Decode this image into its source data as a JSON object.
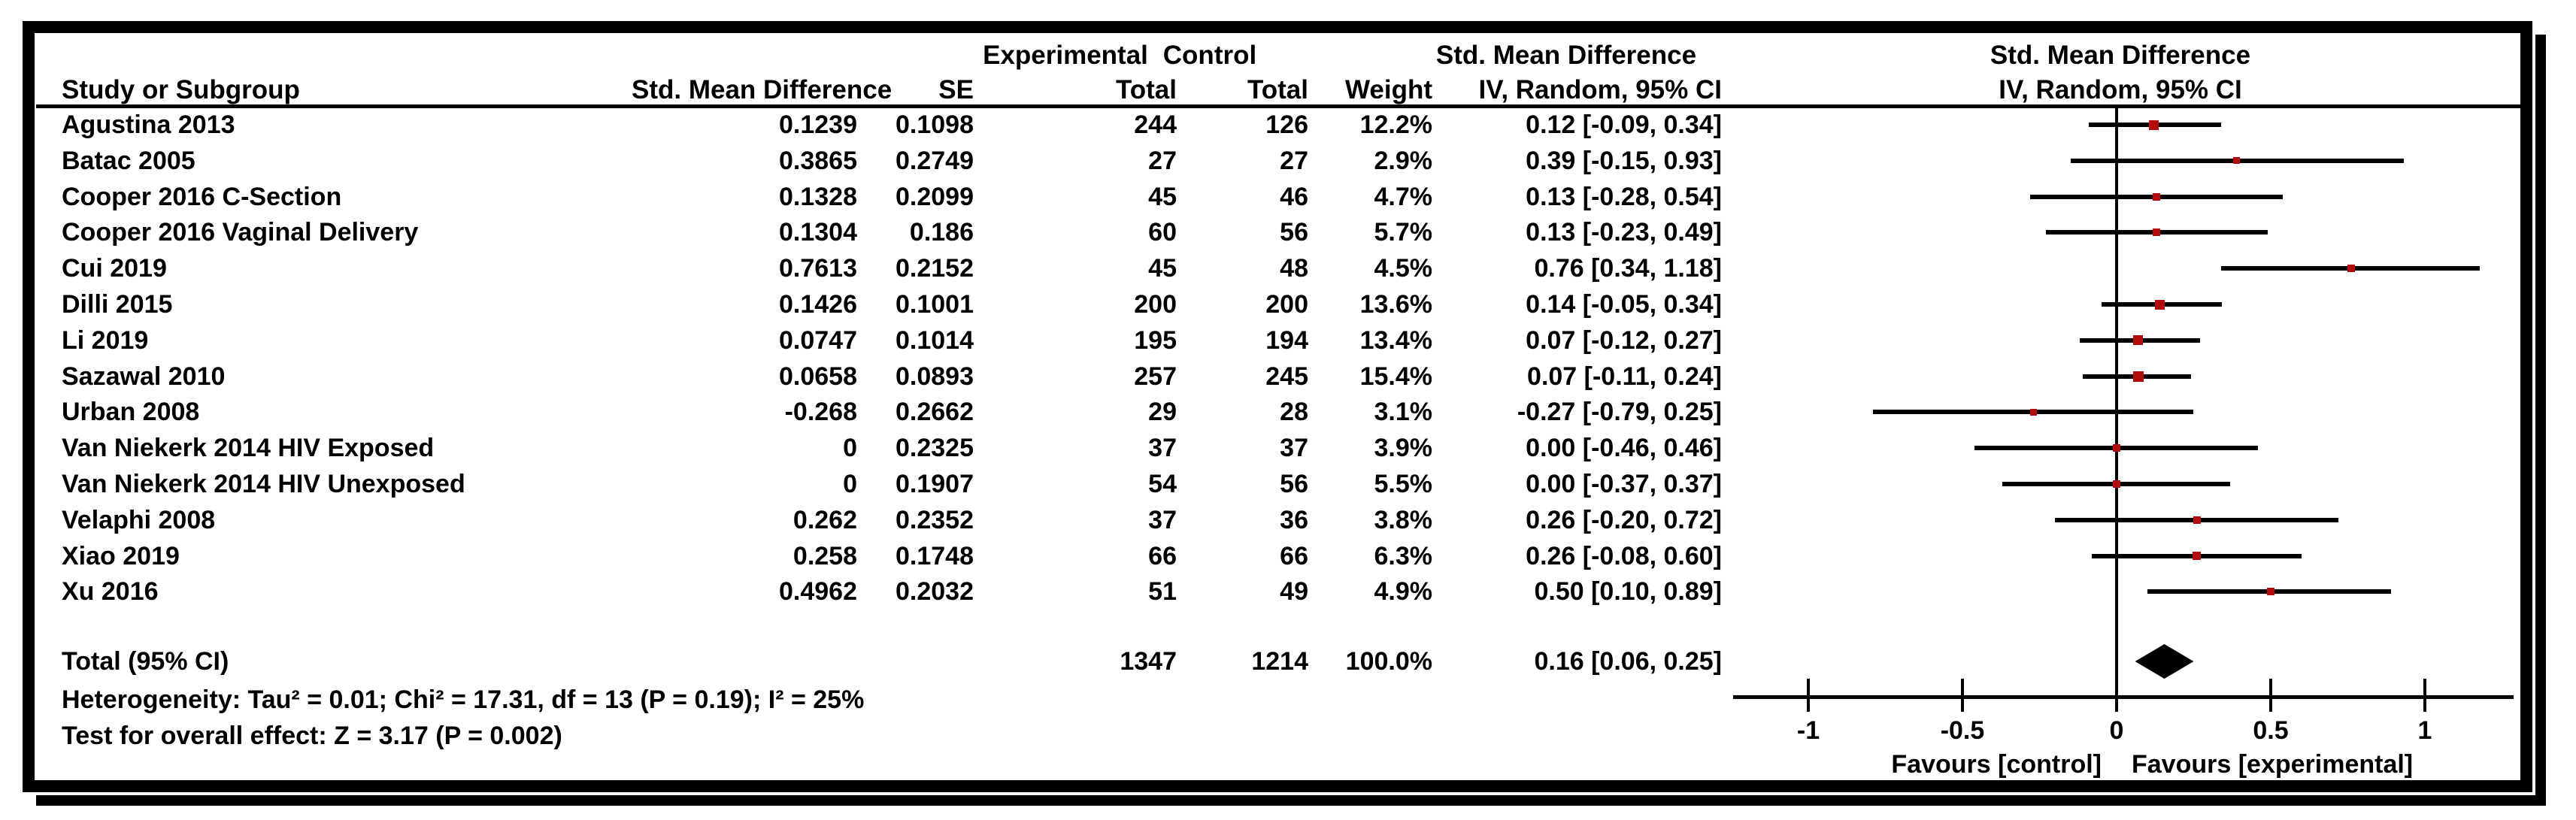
{
  "table": {
    "group_header": {
      "experimental": "Experimental",
      "control": "Control",
      "smd": "Std. Mean Difference",
      "plot_smd": "Std. Mean Difference"
    },
    "columns": {
      "study": "Study or Subgroup",
      "smd": "Std. Mean Difference",
      "se": "SE",
      "exp_total": "Total",
      "ctrl_total": "Total",
      "weight": "Weight",
      "ci": "IV, Random, 95% CI",
      "plot_ci": "IV, Random, 95% CI"
    },
    "studies": [
      {
        "name": "Agustina 2013",
        "smd": "0.1239",
        "se": "0.1098",
        "exp_total": "244",
        "ctrl_total": "126",
        "weight": "12.2%",
        "ci_text": "0.12 [-0.09, 0.34]",
        "est": 0.12,
        "lo": -0.09,
        "hi": 0.34,
        "weight_val": 12.2
      },
      {
        "name": "Batac 2005",
        "smd": "0.3865",
        "se": "0.2749",
        "exp_total": "27",
        "ctrl_total": "27",
        "weight": "2.9%",
        "ci_text": "0.39 [-0.15, 0.93]",
        "est": 0.39,
        "lo": -0.15,
        "hi": 0.93,
        "weight_val": 2.9
      },
      {
        "name": "Cooper 2016 C-Section",
        "smd": "0.1328",
        "se": "0.2099",
        "exp_total": "45",
        "ctrl_total": "46",
        "weight": "4.7%",
        "ci_text": "0.13 [-0.28, 0.54]",
        "est": 0.13,
        "lo": -0.28,
        "hi": 0.54,
        "weight_val": 4.7
      },
      {
        "name": "Cooper 2016 Vaginal Delivery",
        "smd": "0.1304",
        "se": "0.186",
        "exp_total": "60",
        "ctrl_total": "56",
        "weight": "5.7%",
        "ci_text": "0.13 [-0.23, 0.49]",
        "est": 0.13,
        "lo": -0.23,
        "hi": 0.49,
        "weight_val": 5.7
      },
      {
        "name": "Cui 2019",
        "smd": "0.7613",
        "se": "0.2152",
        "exp_total": "45",
        "ctrl_total": "48",
        "weight": "4.5%",
        "ci_text": "0.76 [0.34, 1.18]",
        "est": 0.76,
        "lo": 0.34,
        "hi": 1.18,
        "weight_val": 4.5
      },
      {
        "name": "Dilli 2015",
        "smd": "0.1426",
        "se": "0.1001",
        "exp_total": "200",
        "ctrl_total": "200",
        "weight": "13.6%",
        "ci_text": "0.14 [-0.05, 0.34]",
        "est": 0.14,
        "lo": -0.05,
        "hi": 0.34,
        "weight_val": 13.6
      },
      {
        "name": "Li 2019",
        "smd": "0.0747",
        "se": "0.1014",
        "exp_total": "195",
        "ctrl_total": "194",
        "weight": "13.4%",
        "ci_text": "0.07 [-0.12, 0.27]",
        "est": 0.07,
        "lo": -0.12,
        "hi": 0.27,
        "weight_val": 13.4
      },
      {
        "name": "Sazawal 2010",
        "smd": "0.0658",
        "se": "0.0893",
        "exp_total": "257",
        "ctrl_total": "245",
        "weight": "15.4%",
        "ci_text": "0.07 [-0.11, 0.24]",
        "est": 0.07,
        "lo": -0.11,
        "hi": 0.24,
        "weight_val": 15.4
      },
      {
        "name": "Urban 2008",
        "smd": "-0.268",
        "se": "0.2662",
        "exp_total": "29",
        "ctrl_total": "28",
        "weight": "3.1%",
        "ci_text": "-0.27 [-0.79, 0.25]",
        "est": -0.27,
        "lo": -0.79,
        "hi": 0.25,
        "weight_val": 3.1
      },
      {
        "name": "Van Niekerk 2014 HIV Exposed",
        "smd": "0",
        "se": "0.2325",
        "exp_total": "37",
        "ctrl_total": "37",
        "weight": "3.9%",
        "ci_text": "0.00 [-0.46, 0.46]",
        "est": 0.0,
        "lo": -0.46,
        "hi": 0.46,
        "weight_val": 3.9
      },
      {
        "name": "Van Niekerk 2014 HIV Unexposed",
        "smd": "0",
        "se": "0.1907",
        "exp_total": "54",
        "ctrl_total": "56",
        "weight": "5.5%",
        "ci_text": "0.00 [-0.37, 0.37]",
        "est": 0.0,
        "lo": -0.37,
        "hi": 0.37,
        "weight_val": 5.5
      },
      {
        "name": "Velaphi 2008",
        "smd": "0.262",
        "se": "0.2352",
        "exp_total": "37",
        "ctrl_total": "36",
        "weight": "3.8%",
        "ci_text": "0.26 [-0.20, 0.72]",
        "est": 0.26,
        "lo": -0.2,
        "hi": 0.72,
        "weight_val": 3.8
      },
      {
        "name": "Xiao 2019",
        "smd": "0.258",
        "se": "0.1748",
        "exp_total": "66",
        "ctrl_total": "66",
        "weight": "6.3%",
        "ci_text": "0.26 [-0.08, 0.60]",
        "est": 0.26,
        "lo": -0.08,
        "hi": 0.6,
        "weight_val": 6.3
      },
      {
        "name": "Xu 2016",
        "smd": "0.4962",
        "se": "0.2032",
        "exp_total": "51",
        "ctrl_total": "49",
        "weight": "4.9%",
        "ci_text": "0.50 [0.10, 0.89]",
        "est": 0.5,
        "lo": 0.1,
        "hi": 0.89,
        "weight_val": 4.9
      }
    ],
    "total_row": {
      "label": "Total (95% CI)",
      "exp_total": "1347",
      "ctrl_total": "1214",
      "weight": "100.0%",
      "ci_text": "0.16 [0.06, 0.25]",
      "est": 0.16,
      "lo": 0.06,
      "hi": 0.25
    }
  },
  "footer": {
    "heterogeneity": "Heterogeneity: Tau² = 0.01; Chi² = 17.31, df = 13 (P = 0.19); I² = 25%",
    "overall_effect": "Test for overall effect: Z = 3.17 (P = 0.002)"
  },
  "axis": {
    "ticks": [
      {
        "v": -1,
        "label": "-1"
      },
      {
        "v": -0.5,
        "label": "-0.5"
      },
      {
        "v": 0,
        "label": "0"
      },
      {
        "v": 0.5,
        "label": "0.5"
      },
      {
        "v": 1,
        "label": "1"
      }
    ],
    "favours_left": "Favours [control]",
    "favours_right": "Favours [experimental]"
  },
  "colors": {
    "marker_red": "#b20a0a",
    "line_black": "#000000"
  },
  "chart_data": {
    "type": "forest",
    "title": "Std. Mean Difference — IV, Random, 95% CI",
    "categories": [
      "Agustina 2013",
      "Batac 2005",
      "Cooper 2016 C-Section",
      "Cooper 2016 Vaginal Delivery",
      "Cui 2019",
      "Dilli 2015",
      "Li 2019",
      "Sazawal 2010",
      "Urban 2008",
      "Van Niekerk 2014 HIV Exposed",
      "Van Niekerk 2014 HIV Unexposed",
      "Velaphi 2008",
      "Xiao 2019",
      "Xu 2016"
    ],
    "estimates": [
      0.12,
      0.39,
      0.13,
      0.13,
      0.76,
      0.14,
      0.07,
      0.07,
      -0.27,
      0.0,
      0.0,
      0.26,
      0.26,
      0.5
    ],
    "ci_low": [
      -0.09,
      -0.15,
      -0.28,
      -0.23,
      0.34,
      -0.05,
      -0.12,
      -0.11,
      -0.79,
      -0.46,
      -0.37,
      -0.2,
      -0.08,
      0.1
    ],
    "ci_high": [
      0.34,
      0.93,
      0.54,
      0.49,
      1.18,
      0.34,
      0.27,
      0.24,
      0.25,
      0.46,
      0.37,
      0.72,
      0.6,
      0.89
    ],
    "weights_pct": [
      12.2,
      2.9,
      4.7,
      5.7,
      4.5,
      13.6,
      13.4,
      15.4,
      3.1,
      3.9,
      5.5,
      3.8,
      6.3,
      4.9
    ],
    "total": {
      "estimate": 0.16,
      "ci_low": 0.06,
      "ci_high": 0.25,
      "weight_pct": 100.0,
      "experimental_n": 1347,
      "control_n": 1214
    },
    "xlabel_left": "Favours [control]",
    "xlabel_right": "Favours [experimental]",
    "x_ticks": [
      -1,
      -0.5,
      0,
      0.5,
      1
    ],
    "xlim": [
      -1.25,
      1.28
    ],
    "legend": "none",
    "grid": false
  }
}
